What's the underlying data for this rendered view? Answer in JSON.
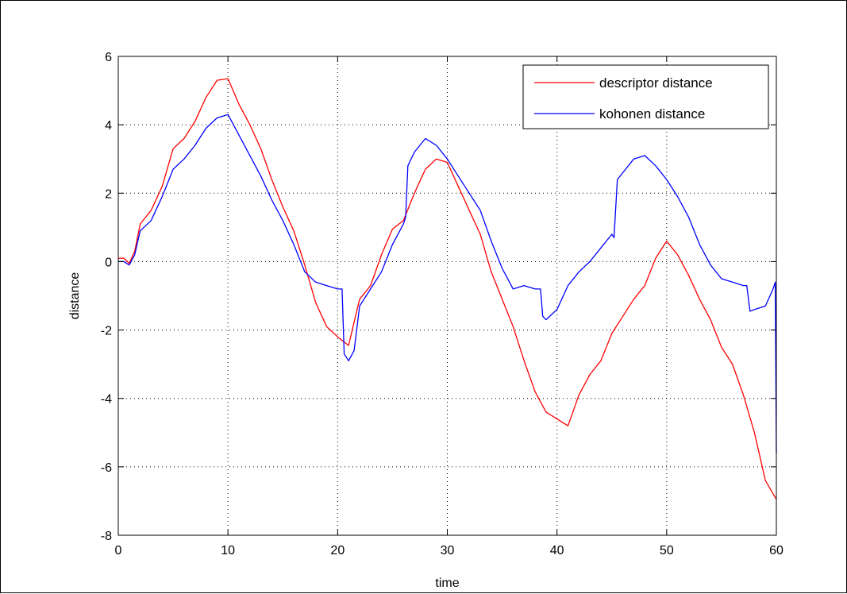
{
  "chart_data": {
    "type": "line",
    "title": "",
    "xlabel": "time",
    "ylabel": "distance",
    "xlim": [
      0,
      60
    ],
    "ylim": [
      -8,
      6
    ],
    "xticks": [
      0,
      10,
      20,
      30,
      40,
      50,
      60
    ],
    "yticks": [
      -8,
      -6,
      -4,
      -2,
      0,
      2,
      4,
      6
    ],
    "grid": true,
    "legend_position": "top-right",
    "series": [
      {
        "name": "descriptor distance",
        "color": "#ff0000",
        "x": [
          0,
          0.5,
          1,
          1.5,
          2,
          3,
          4,
          5,
          6,
          7,
          8,
          9,
          10,
          11,
          12,
          13,
          14,
          15,
          16,
          17,
          18,
          19,
          20,
          21,
          22,
          23,
          24,
          25,
          26,
          27,
          28,
          29,
          30,
          31,
          32,
          33,
          34,
          35,
          36,
          37,
          38,
          39,
          40,
          41,
          42,
          43,
          44,
          45,
          46,
          47,
          48,
          49,
          50,
          51,
          52,
          53,
          54,
          55,
          56,
          57,
          58,
          59,
          60
        ],
        "y": [
          0.1,
          0.1,
          -0.05,
          0.3,
          1.1,
          1.5,
          2.2,
          3.3,
          3.6,
          4.1,
          4.8,
          5.3,
          5.35,
          4.6,
          4.0,
          3.3,
          2.4,
          1.6,
          0.9,
          -0.1,
          -1.2,
          -1.9,
          -2.2,
          -2.45,
          -1.1,
          -0.7,
          0.2,
          0.95,
          1.2,
          2.0,
          2.7,
          3.0,
          2.9,
          2.2,
          1.5,
          0.8,
          -0.3,
          -1.1,
          -1.9,
          -2.9,
          -3.8,
          -4.4,
          -4.6,
          -4.8,
          -3.9,
          -3.3,
          -2.9,
          -2.1,
          -1.6,
          -1.1,
          -0.7,
          0.1,
          0.6,
          0.2,
          -0.4,
          -1.1,
          -1.7,
          -2.5,
          -3.0,
          -3.9,
          -5.0,
          -6.4,
          -6.95
        ]
      },
      {
        "name": "kohonen distance",
        "color": "#0000ff",
        "x": [
          0,
          0.5,
          1,
          1.5,
          2,
          3,
          4,
          5,
          6,
          7,
          8,
          9,
          10,
          11,
          12,
          13,
          14,
          15,
          16,
          17,
          18,
          19,
          20,
          20.4,
          20.6,
          21,
          21.5,
          22,
          23,
          24,
          25,
          26,
          26.2,
          26.4,
          27,
          28,
          29,
          30,
          31,
          32,
          33,
          34,
          35,
          36,
          37,
          38,
          38.5,
          38.7,
          39,
          40,
          41,
          42,
          43,
          44,
          45,
          45.2,
          45.5,
          46,
          47,
          48,
          49,
          50,
          51,
          52,
          53,
          54,
          55,
          56,
          57,
          57.3,
          57.6,
          58,
          59,
          59.7,
          59.9,
          60
        ],
        "y": [
          0.0,
          0.0,
          -0.1,
          0.2,
          0.9,
          1.2,
          1.9,
          2.7,
          3.0,
          3.4,
          3.9,
          4.2,
          4.3,
          3.7,
          3.1,
          2.5,
          1.8,
          1.2,
          0.5,
          -0.3,
          -0.6,
          -0.7,
          -0.8,
          -0.8,
          -2.7,
          -2.9,
          -2.6,
          -1.3,
          -0.8,
          -0.3,
          0.5,
          1.1,
          1.3,
          2.8,
          3.2,
          3.6,
          3.4,
          3.0,
          2.5,
          2.0,
          1.5,
          0.6,
          -0.2,
          -0.8,
          -0.7,
          -0.8,
          -0.8,
          -1.6,
          -1.7,
          -1.4,
          -0.7,
          -0.3,
          0.0,
          0.4,
          0.8,
          0.7,
          2.4,
          2.6,
          3.0,
          3.1,
          2.8,
          2.4,
          1.9,
          1.3,
          0.5,
          -0.1,
          -0.5,
          -0.6,
          -0.7,
          -0.7,
          -1.45,
          -1.4,
          -1.3,
          -0.8,
          -0.6,
          -5.6
        ]
      }
    ]
  }
}
